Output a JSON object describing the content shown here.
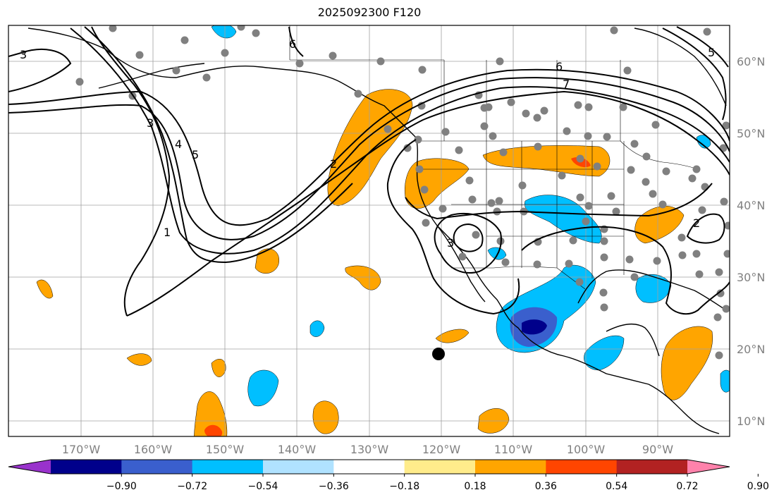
{
  "title": "2025092300 F120",
  "lat_labels": [
    "60°N",
    "50°N",
    "40°N",
    "30°N",
    "20°N",
    "10°N"
  ],
  "lon_labels": [
    "170°W",
    "160°W",
    "150°W",
    "140°W",
    "130°W",
    "120°W",
    "110°W",
    "100°W",
    "90°W"
  ],
  "colorbar": {
    "ticks": [
      "−0.90",
      "−0.72",
      "−0.54",
      "−0.36",
      "−0.18",
      "0.18",
      "0.36",
      "0.54",
      "0.72",
      "0.90"
    ],
    "colors": [
      "#9932cc",
      "#00008b",
      "#3a5fcd",
      "#00bfff",
      "#b0e2ff",
      "#ffffff",
      "#ffec8b",
      "#ffa500",
      "#ff4500",
      "#b22222",
      "#ff82ab"
    ]
  },
  "contour_labels": [
    "3",
    "6",
    "3",
    "4",
    "5",
    "1",
    "2",
    "6",
    "7",
    "3",
    "2",
    "5"
  ],
  "marker": "storm-center",
  "colors": {
    "frame": "#000000",
    "grid": "#a0a0a0",
    "station": "#808080",
    "positive": "#ffa500",
    "negative": "#00bfff",
    "strong_negative": "#3a5fcd",
    "extreme_negative": "#00008b",
    "strong_positive": "#ff4500"
  }
}
